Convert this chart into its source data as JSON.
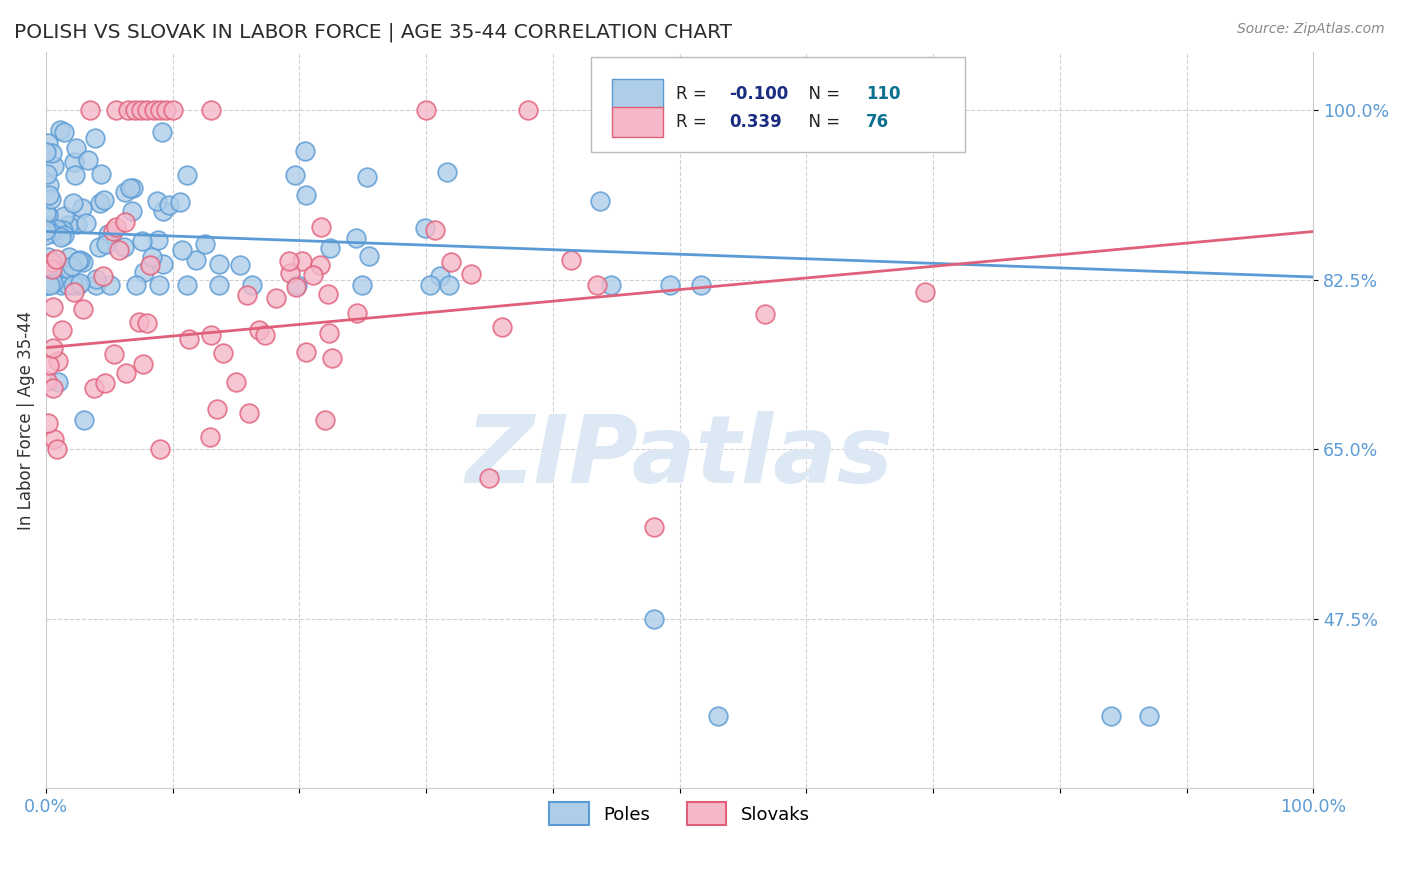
{
  "title": "POLISH VS SLOVAK IN LABOR FORCE | AGE 35-44 CORRELATION CHART",
  "source_text": "Source: ZipAtlas.com",
  "ylabel": "In Labor Force | Age 35-44",
  "xlim": [
    0.0,
    1.0
  ],
  "ylim": [
    0.3,
    1.06
  ],
  "yticks": [
    0.475,
    0.65,
    0.825,
    1.0
  ],
  "ytick_labels": [
    "47.5%",
    "65.0%",
    "82.5%",
    "100.0%"
  ],
  "xtick_vals": [
    0.0,
    0.1,
    0.2,
    0.3,
    0.4,
    0.5,
    0.6,
    0.7,
    0.8,
    0.9,
    1.0
  ],
  "xtick_labels": [
    "0.0%",
    "",
    "",
    "",
    "",
    "",
    "",
    "",
    "",
    "",
    "100.0%"
  ],
  "poles_face_color": "#aecde8",
  "poles_edge_color": "#5b9bd5",
  "slovaks_face_color": "#f5b8c9",
  "slovaks_edge_color": "#e0607a",
  "poles_line_color": "#5b9bd5",
  "slovaks_line_color": "#e0607a",
  "R_poles": -0.1,
  "N_poles": 110,
  "R_slovaks": 0.339,
  "N_slovaks": 76,
  "R_val_color": "#1a2d80",
  "N_val_color": "#0a7090",
  "label_color": "#5b9bd5",
  "axis_label_color": "#333333",
  "grid_color": "#cccccc",
  "watermark_text": "ZIPatlas",
  "watermark_color": "#dde8f5",
  "poles_seed": 42,
  "slovaks_seed": 99,
  "marker_size": 180
}
